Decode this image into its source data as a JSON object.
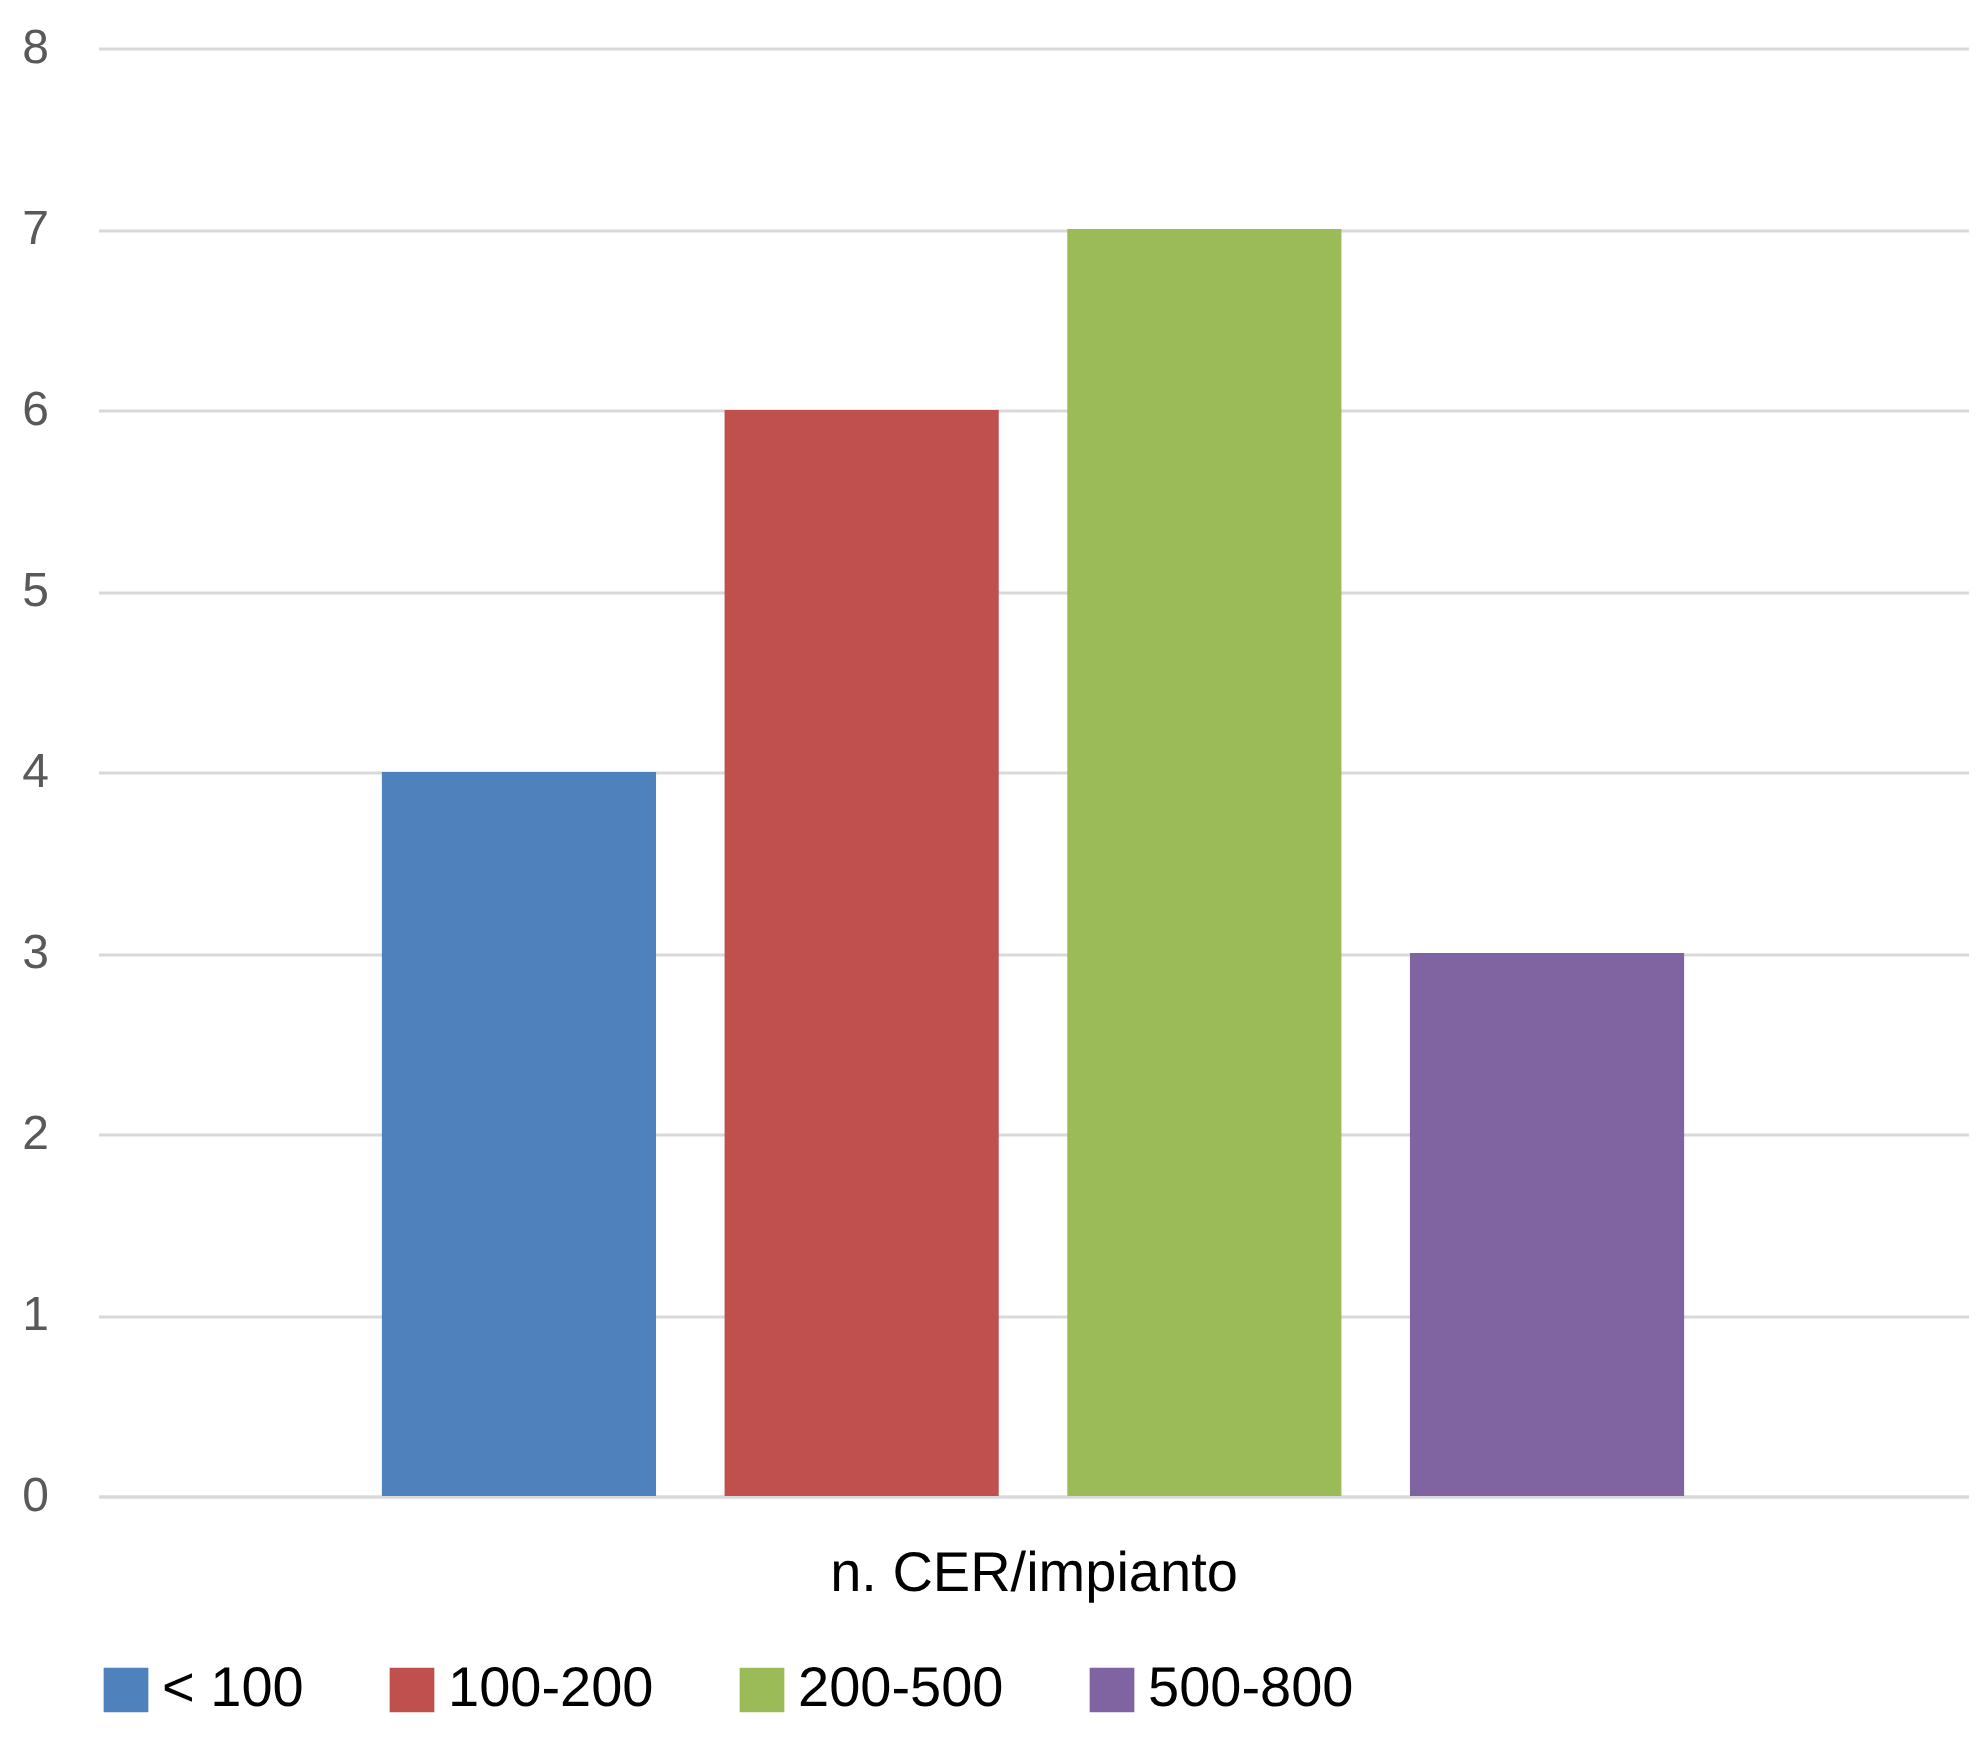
{
  "chart_data": {
    "type": "bar",
    "xlabel": "n. CER/impianto",
    "categories": [
      null
    ],
    "series": [
      {
        "name": "< 100",
        "color": "#4f81bd",
        "values": [
          4
        ]
      },
      {
        "name": "100-200",
        "color": "#c0504d",
        "values": [
          6
        ]
      },
      {
        "name": "200-500",
        "color": "#9bbb59",
        "values": [
          7
        ]
      },
      {
        "name": "500-800",
        "color": "#8064a2",
        "values": [
          3
        ]
      }
    ],
    "ylim": [
      0,
      8
    ],
    "yticks": [
      0,
      1,
      2,
      3,
      4,
      5,
      6,
      7,
      8
    ],
    "grid": "y",
    "legend": "bottom",
    "tick_labels": "y"
  }
}
